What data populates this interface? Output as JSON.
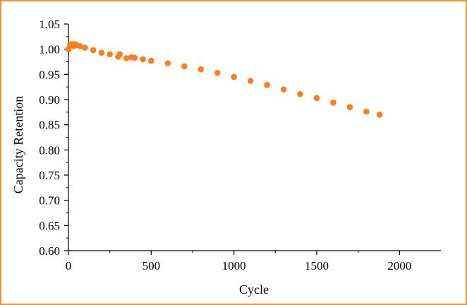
{
  "frame": {
    "border_color": "#f0923a"
  },
  "chart_data": {
    "type": "scatter",
    "xlabel": "Cycle",
    "ylabel": "Capacity Retention",
    "xlim": [
      0,
      2250
    ],
    "ylim": [
      0.6,
      1.05
    ],
    "x_ticks": [
      0,
      500,
      1000,
      1500,
      2000
    ],
    "y_ticks": [
      0.6,
      0.65,
      0.7,
      0.75,
      0.8,
      0.85,
      0.9,
      0.95,
      1.0,
      1.05
    ],
    "x_tick_labels": [
      "0",
      "500",
      "1000",
      "1500",
      "2000"
    ],
    "y_tick_labels": [
      "0.60",
      "0.65",
      "0.70",
      "0.75",
      "0.80",
      "0.85",
      "0.90",
      "0.95",
      "1.00",
      "1.05"
    ],
    "grid": false,
    "series": [
      {
        "color": "#ff7f1e",
        "x": [
          0,
          10,
          20,
          30,
          40,
          50,
          70,
          100,
          150,
          200,
          250,
          300,
          310,
          350,
          380,
          400,
          450,
          500,
          600,
          700,
          800,
          900,
          1000,
          1100,
          1200,
          1300,
          1400,
          1500,
          1600,
          1700,
          1800,
          1880
        ],
        "y": [
          1.0,
          1.008,
          1.01,
          1.006,
          1.01,
          1.008,
          1.006,
          1.003,
          0.998,
          0.993,
          0.99,
          0.985,
          0.99,
          0.982,
          0.984,
          0.983,
          0.98,
          0.977,
          0.972,
          0.966,
          0.96,
          0.953,
          0.945,
          0.937,
          0.929,
          0.92,
          0.911,
          0.903,
          0.894,
          0.885,
          0.876,
          0.87
        ]
      }
    ]
  }
}
